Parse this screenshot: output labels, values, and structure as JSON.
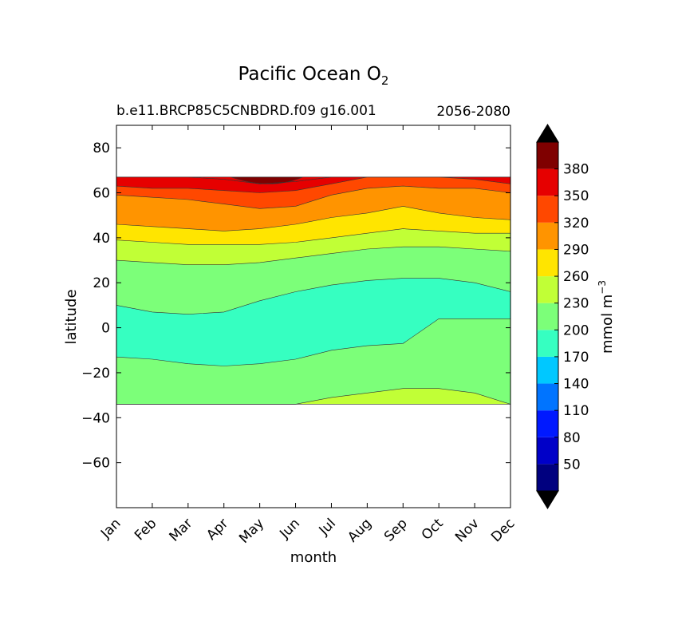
{
  "chart_data": {
    "type": "contour",
    "title": "Pacific Ocean O",
    "title_subscript": "2",
    "subtitle_left": "b.e11.BRCP85C5CNBDRD.f09 g16.001",
    "subtitle_right": "2056-2080",
    "xlabel": "month",
    "ylabel": "latitude",
    "x_ticks": [
      "Jan",
      "Feb",
      "Mar",
      "Apr",
      "May",
      "Jun",
      "Jul",
      "Aug",
      "Sep",
      "Oct",
      "Nov",
      "Dec"
    ],
    "ylim": [
      -80,
      90
    ],
    "y_ticks": [
      80,
      60,
      40,
      20,
      0,
      -20,
      -40,
      -60
    ],
    "y_tick_labels": [
      "80",
      "60",
      "40",
      "20",
      "0",
      "−20",
      "−40",
      "−60"
    ],
    "data_lat_range": [
      -34,
      67
    ],
    "colorbar": {
      "label": "mmol m",
      "label_exponent": "−3",
      "extend": "both",
      "levels": [
        20,
        50,
        80,
        110,
        140,
        170,
        200,
        230,
        260,
        290,
        320,
        350,
        380,
        410
      ],
      "tick_labels": [
        "50",
        "80",
        "110",
        "140",
        "170",
        "200",
        "230",
        "260",
        "290",
        "320",
        "350",
        "380"
      ],
      "colors": [
        "#00007f",
        "#0000c8",
        "#0019ff",
        "#0074ff",
        "#00c8ff",
        "#36ffc1",
        "#7cff79",
        "#c1ff36",
        "#ffe500",
        "#ff9400",
        "#ff4800",
        "#e60000",
        "#7f0000"
      ],
      "extend_color": "#000000"
    },
    "bands": [
      {
        "lower": 230,
        "upper": 260,
        "boundary": [
          [
            -34,
            -34
          ],
          [
            -34,
            -34
          ],
          [
            -34,
            -34
          ],
          [
            -34,
            -34
          ],
          [
            -34,
            -34
          ],
          [
            -34,
            -34
          ],
          [
            -31,
            -31
          ],
          [
            -29,
            -29
          ],
          [
            -27,
            -27
          ],
          [
            -27,
            -27
          ],
          [
            -29,
            -29
          ],
          [
            -34,
            -34
          ]
        ]
      },
      {
        "lower": 200,
        "upper": 230,
        "boundary": [
          [
            -13,
            -13
          ],
          [
            -14,
            -14
          ],
          [
            -16,
            -16
          ],
          [
            -17,
            -17
          ],
          [
            -16,
            -16
          ],
          [
            -14,
            -14
          ],
          [
            -10,
            -10
          ],
          [
            -8,
            -8
          ],
          [
            -7,
            -7
          ],
          [
            4,
            4
          ],
          [
            4,
            4
          ],
          [
            4,
            4
          ]
        ]
      },
      {
        "lower": 170,
        "upper": 200,
        "boundary": [
          [
            10,
            10
          ],
          [
            7,
            7
          ],
          [
            6,
            6
          ],
          [
            7,
            7
          ],
          [
            12,
            12
          ],
          [
            16,
            16
          ],
          [
            19,
            19
          ],
          [
            21,
            21
          ],
          [
            22,
            22
          ],
          [
            22,
            22
          ],
          [
            20,
            20
          ],
          [
            16,
            16
          ]
        ]
      },
      {
        "lower": 200,
        "upper": 230,
        "boundary": [
          [
            30,
            30
          ],
          [
            29,
            29
          ],
          [
            28,
            28
          ],
          [
            28,
            28
          ],
          [
            29,
            29
          ],
          [
            31,
            31
          ],
          [
            33,
            33
          ],
          [
            35,
            35
          ],
          [
            36,
            36
          ],
          [
            36,
            36
          ],
          [
            35,
            35
          ],
          [
            34,
            34
          ]
        ]
      },
      {
        "lower": 230,
        "upper": 260,
        "boundary": [
          [
            39,
            39
          ],
          [
            38,
            38
          ],
          [
            37,
            37
          ],
          [
            37,
            37
          ],
          [
            37,
            37
          ],
          [
            38,
            38
          ],
          [
            40,
            40
          ],
          [
            42,
            42
          ],
          [
            44,
            44
          ],
          [
            43,
            43
          ],
          [
            42,
            42
          ],
          [
            42,
            42
          ]
        ]
      },
      {
        "lower": 260,
        "upper": 290,
        "boundary": [
          [
            46,
            46
          ],
          [
            45,
            45
          ],
          [
            44,
            44
          ],
          [
            43,
            43
          ],
          [
            44,
            44
          ],
          [
            46,
            46
          ],
          [
            49,
            49
          ],
          [
            51,
            51
          ],
          [
            54,
            54
          ],
          [
            51,
            51
          ],
          [
            49,
            49
          ],
          [
            48,
            48
          ]
        ]
      },
      {
        "lower": 290,
        "upper": 320,
        "boundary": [
          [
            59,
            59
          ],
          [
            58,
            58
          ],
          [
            57,
            57
          ],
          [
            55,
            55
          ],
          [
            53,
            53
          ],
          [
            54,
            54
          ],
          [
            59,
            59
          ],
          [
            62,
            62
          ],
          [
            63,
            63
          ],
          [
            62,
            62
          ],
          [
            62,
            62
          ],
          [
            60,
            60
          ]
        ]
      },
      {
        "lower": 320,
        "upper": 350,
        "boundary": [
          [
            63,
            63
          ],
          [
            62,
            62
          ],
          [
            62,
            62
          ],
          [
            61,
            61
          ],
          [
            60,
            60
          ],
          [
            61,
            61
          ],
          [
            64,
            64
          ],
          [
            67,
            67
          ],
          [
            67,
            67
          ],
          [
            67,
            67
          ],
          [
            66,
            66
          ],
          [
            64,
            64
          ]
        ]
      },
      {
        "lower": 350,
        "upper": 380,
        "boundary": [
          [
            67,
            67
          ],
          [
            67,
            67
          ],
          [
            67,
            67
          ],
          [
            66,
            66
          ],
          [
            64,
            64
          ],
          [
            65,
            65
          ],
          [
            67,
            67
          ],
          [
            67,
            67
          ],
          [
            67,
            67
          ],
          [
            67,
            67
          ],
          [
            67,
            67
          ],
          [
            67,
            67
          ]
        ]
      }
    ]
  }
}
